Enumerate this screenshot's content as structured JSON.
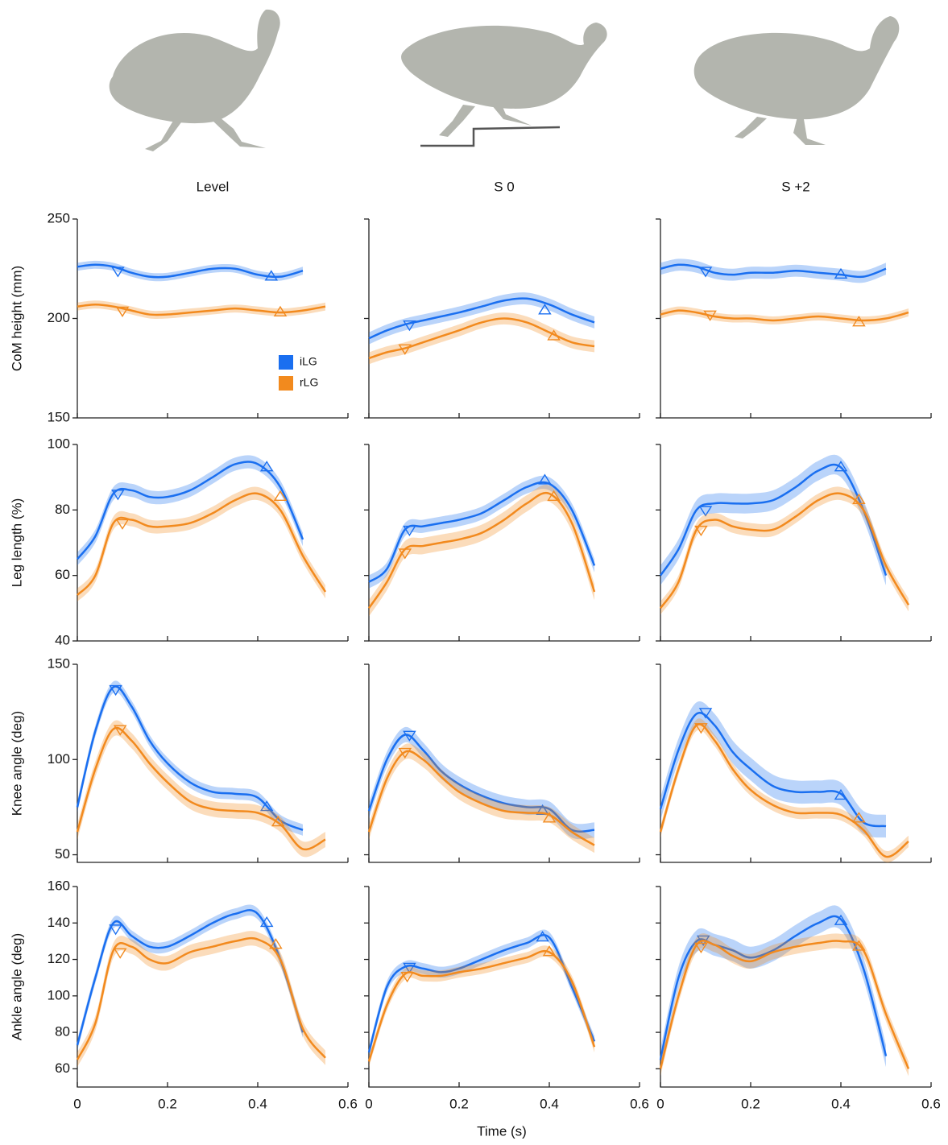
{
  "chart_data": [
    {
      "type": "line",
      "title": "Level",
      "ylabel": "CoM height (mm)",
      "legend": true,
      "xtick_labels": false,
      "ytick_labels": true,
      "xlim": [
        0,
        0.6
      ],
      "xticks": [
        0,
        0.2,
        0.4,
        0.6
      ],
      "ylim": [
        150,
        250
      ],
      "yticks": [
        150,
        200,
        250
      ],
      "x": [
        0,
        0.04,
        0.08,
        0.12,
        0.16,
        0.2,
        0.25,
        0.3,
        0.35,
        0.4,
        0.45,
        0.5,
        0.55
      ],
      "series": [
        {
          "name": "iLG",
          "color": "#1a6ff0",
          "values": [
            226,
            227,
            226,
            223,
            221,
            221,
            223,
            225,
            225,
            222,
            221,
            224,
            null
          ],
          "error": 2,
          "touchdown": [
            0.09,
            224
          ],
          "liftoff": [
            0.43,
            221
          ]
        },
        {
          "name": "rLG",
          "color": "#f28a1e",
          "values": [
            206,
            207,
            206,
            204,
            202,
            202,
            203,
            204,
            205,
            204,
            203,
            204,
            206
          ],
          "error": 2,
          "touchdown": [
            0.1,
            204
          ],
          "liftoff": [
            0.45,
            203
          ]
        }
      ]
    },
    {
      "type": "line",
      "title": "S 0",
      "xtick_labels": false,
      "ytick_labels": false,
      "xlim": [
        0,
        0.6
      ],
      "xticks": [
        0,
        0.2,
        0.4,
        0.6
      ],
      "ylim": [
        150,
        250
      ],
      "yticks": [
        150,
        200,
        250
      ],
      "x": [
        0,
        0.04,
        0.08,
        0.12,
        0.16,
        0.2,
        0.25,
        0.3,
        0.35,
        0.4,
        0.45,
        0.5,
        0.55
      ],
      "series": [
        {
          "color": "#1a6ff0",
          "values": [
            190,
            194,
            197,
            199,
            201,
            203,
            206,
            209,
            210,
            207,
            202,
            198,
            null
          ],
          "error": 3,
          "touchdown": [
            0.09,
            197
          ],
          "liftoff": [
            0.39,
            204
          ]
        },
        {
          "color": "#f28a1e",
          "values": [
            180,
            183,
            185,
            188,
            191,
            194,
            198,
            200,
            198,
            193,
            188,
            186,
            null
          ],
          "error": 3,
          "touchdown": [
            0.08,
            185
          ],
          "liftoff": [
            0.41,
            191
          ]
        }
      ]
    },
    {
      "type": "line",
      "title": "S +2",
      "xtick_labels": false,
      "ytick_labels": false,
      "xlim": [
        0,
        0.6
      ],
      "xticks": [
        0,
        0.2,
        0.4,
        0.6
      ],
      "ylim": [
        150,
        250
      ],
      "yticks": [
        150,
        200,
        250
      ],
      "x": [
        0,
        0.04,
        0.08,
        0.12,
        0.16,
        0.2,
        0.25,
        0.3,
        0.35,
        0.4,
        0.45,
        0.5,
        0.55
      ],
      "series": [
        {
          "color": "#1a6ff0",
          "values": [
            225,
            227,
            226,
            223,
            222,
            223,
            223,
            224,
            223,
            222,
            221,
            225,
            null
          ],
          "error": 3,
          "touchdown": [
            0.1,
            224
          ],
          "liftoff": [
            0.4,
            222
          ]
        },
        {
          "color": "#f28a1e",
          "values": [
            202,
            204,
            203,
            201,
            200,
            200,
            199,
            200,
            201,
            200,
            199,
            200,
            203
          ],
          "error": 2,
          "touchdown": [
            0.11,
            202
          ],
          "liftoff": [
            0.44,
            198
          ]
        }
      ]
    },
    {
      "type": "line",
      "ylabel": "Leg length (%)",
      "xtick_labels": false,
      "ytick_labels": true,
      "xlim": [
        0,
        0.6
      ],
      "xticks": [
        0,
        0.2,
        0.4,
        0.6
      ],
      "ylim": [
        40,
        100
      ],
      "yticks": [
        40,
        60,
        80,
        100
      ],
      "x": [
        0,
        0.04,
        0.08,
        0.12,
        0.16,
        0.2,
        0.25,
        0.3,
        0.35,
        0.4,
        0.45,
        0.5,
        0.55
      ],
      "series": [
        {
          "color": "#1a6ff0",
          "values": [
            65,
            72,
            85,
            86,
            84,
            84,
            86,
            90,
            94,
            94,
            87,
            71,
            null
          ],
          "error": 2,
          "touchdown": [
            0.09,
            85
          ],
          "liftoff": [
            0.42,
            93
          ]
        },
        {
          "color": "#f28a1e",
          "values": [
            54,
            60,
            76,
            77,
            75,
            75,
            76,
            79,
            83,
            85,
            80,
            66,
            55
          ],
          "error": 2,
          "touchdown": [
            0.1,
            76
          ],
          "liftoff": [
            0.45,
            84
          ]
        }
      ]
    },
    {
      "type": "line",
      "xtick_labels": false,
      "ytick_labels": false,
      "xlim": [
        0,
        0.6
      ],
      "xticks": [
        0,
        0.2,
        0.4,
        0.6
      ],
      "ylim": [
        40,
        100
      ],
      "yticks": [
        40,
        60,
        80,
        100
      ],
      "x": [
        0,
        0.04,
        0.08,
        0.12,
        0.16,
        0.2,
        0.25,
        0.3,
        0.35,
        0.4,
        0.45,
        0.5,
        0.55
      ],
      "series": [
        {
          "color": "#1a6ff0",
          "values": [
            58,
            62,
            74,
            75,
            76,
            77,
            79,
            83,
            87,
            88,
            80,
            63,
            null
          ],
          "error": 2,
          "touchdown": [
            0.09,
            74
          ],
          "liftoff": [
            0.39,
            89
          ]
        },
        {
          "color": "#f28a1e",
          "values": [
            50,
            58,
            68,
            69,
            70,
            71,
            73,
            77,
            82,
            85,
            76,
            55,
            null
          ],
          "error": 2.5,
          "touchdown": [
            0.08,
            67
          ],
          "liftoff": [
            0.41,
            84
          ]
        }
      ]
    },
    {
      "type": "line",
      "xtick_labels": false,
      "ytick_labels": false,
      "xlim": [
        0,
        0.6
      ],
      "xticks": [
        0,
        0.2,
        0.4,
        0.6
      ],
      "ylim": [
        40,
        100
      ],
      "yticks": [
        40,
        60,
        80,
        100
      ],
      "x": [
        0,
        0.04,
        0.08,
        0.12,
        0.16,
        0.2,
        0.25,
        0.3,
        0.35,
        0.4,
        0.45,
        0.5,
        0.55
      ],
      "series": [
        {
          "color": "#1a6ff0",
          "values": [
            60,
            68,
            80,
            82,
            82,
            82,
            83,
            87,
            92,
            93,
            80,
            60,
            null
          ],
          "error": 3,
          "touchdown": [
            0.1,
            80
          ],
          "liftoff": [
            0.4,
            93
          ]
        },
        {
          "color": "#f28a1e",
          "values": [
            50,
            58,
            74,
            77,
            75,
            74,
            74,
            78,
            83,
            85,
            80,
            63,
            51
          ],
          "error": 2,
          "touchdown": [
            0.09,
            74
          ],
          "liftoff": [
            0.44,
            83
          ]
        }
      ]
    },
    {
      "type": "line",
      "ylabel": "Knee angle (deg)",
      "xtick_labels": false,
      "ytick_labels": true,
      "xlim": [
        0,
        0.6
      ],
      "xticks": [
        0,
        0.2,
        0.4,
        0.6
      ],
      "ylim": [
        46,
        150
      ],
      "yticks": [
        50,
        100,
        150
      ],
      "x": [
        0,
        0.04,
        0.08,
        0.12,
        0.16,
        0.2,
        0.25,
        0.3,
        0.35,
        0.4,
        0.45,
        0.5,
        0.55
      ],
      "series": [
        {
          "color": "#1a6ff0",
          "values": [
            75,
            115,
            138,
            128,
            110,
            98,
            88,
            83,
            82,
            80,
            68,
            63,
            null
          ],
          "error": 3,
          "touchdown": [
            0.085,
            137
          ],
          "liftoff": [
            0.42,
            75
          ]
        },
        {
          "color": "#f28a1e",
          "values": [
            62,
            95,
            116,
            110,
            98,
            88,
            78,
            74,
            73,
            72,
            66,
            53,
            58
          ],
          "error": 4,
          "touchdown": [
            0.095,
            116
          ],
          "liftoff": [
            0.445,
            67
          ]
        }
      ]
    },
    {
      "type": "line",
      "xtick_labels": false,
      "ytick_labels": false,
      "xlim": [
        0,
        0.6
      ],
      "xticks": [
        0,
        0.2,
        0.4,
        0.6
      ],
      "ylim": [
        46,
        150
      ],
      "yticks": [
        50,
        100,
        150
      ],
      "x": [
        0,
        0.04,
        0.08,
        0.12,
        0.16,
        0.2,
        0.25,
        0.3,
        0.35,
        0.4,
        0.45,
        0.5,
        0.55
      ],
      "series": [
        {
          "color": "#1a6ff0",
          "values": [
            73,
            100,
            113,
            105,
            94,
            87,
            81,
            77,
            75,
            74,
            63,
            63,
            null
          ],
          "error": 4,
          "touchdown": [
            0.09,
            113
          ],
          "liftoff": [
            0.385,
            73
          ]
        },
        {
          "color": "#f28a1e",
          "values": [
            62,
            90,
            104,
            100,
            91,
            83,
            77,
            73,
            72,
            71,
            62,
            55,
            null
          ],
          "error": 4,
          "touchdown": [
            0.08,
            104
          ],
          "liftoff": [
            0.4,
            69
          ]
        }
      ]
    },
    {
      "type": "line",
      "xtick_labels": false,
      "ytick_labels": false,
      "xlim": [
        0,
        0.6
      ],
      "xticks": [
        0,
        0.2,
        0.4,
        0.6
      ],
      "ylim": [
        46,
        150
      ],
      "yticks": [
        50,
        100,
        150
      ],
      "x": [
        0,
        0.04,
        0.08,
        0.12,
        0.16,
        0.2,
        0.25,
        0.3,
        0.35,
        0.4,
        0.45,
        0.5,
        0.55
      ],
      "series": [
        {
          "color": "#1a6ff0",
          "values": [
            74,
            105,
            124,
            118,
            104,
            95,
            86,
            83,
            83,
            82,
            67,
            65,
            null
          ],
          "error": 6,
          "touchdown": [
            0.1,
            125
          ],
          "liftoff": [
            0.4,
            81
          ]
        },
        {
          "color": "#f28a1e",
          "values": [
            62,
            95,
            118,
            110,
            95,
            84,
            76,
            72,
            72,
            71,
            63,
            49,
            57
          ],
          "error": 3,
          "touchdown": [
            0.09,
            117
          ],
          "liftoff": [
            0.44,
            69
          ]
        }
      ]
    },
    {
      "type": "line",
      "ylabel": "Ankle angle (deg)",
      "xtick_labels": true,
      "ytick_labels": true,
      "xlim": [
        0,
        0.6
      ],
      "xticks": [
        0,
        0.2,
        0.4,
        0.6
      ],
      "ylim": [
        50,
        160
      ],
      "yticks": [
        60,
        80,
        100,
        120,
        140,
        160
      ],
      "x": [
        0,
        0.04,
        0.08,
        0.12,
        0.16,
        0.2,
        0.25,
        0.3,
        0.35,
        0.4,
        0.45,
        0.5,
        0.55
      ],
      "series": [
        {
          "color": "#1a6ff0",
          "values": [
            73,
            110,
            140,
            133,
            127,
            127,
            133,
            140,
            145,
            145,
            120,
            80,
            null
          ],
          "error": 3,
          "touchdown": [
            0.085,
            137
          ],
          "liftoff": [
            0.42,
            140
          ]
        },
        {
          "color": "#f28a1e",
          "values": [
            65,
            85,
            125,
            127,
            120,
            118,
            124,
            127,
            130,
            131,
            120,
            82,
            66
          ],
          "error": 4,
          "touchdown": [
            0.095,
            124
          ],
          "liftoff": [
            0.44,
            128
          ]
        }
      ]
    },
    {
      "type": "line",
      "xlabel": "Time (s)",
      "xtick_labels": true,
      "ytick_labels": false,
      "xlim": [
        0,
        0.6
      ],
      "xticks": [
        0,
        0.2,
        0.4,
        0.6
      ],
      "ylim": [
        50,
        160
      ],
      "yticks": [
        60,
        80,
        100,
        120,
        140,
        160
      ],
      "x": [
        0,
        0.04,
        0.08,
        0.12,
        0.16,
        0.2,
        0.25,
        0.3,
        0.35,
        0.4,
        0.45,
        0.5,
        0.55
      ],
      "series": [
        {
          "color": "#1a6ff0",
          "values": [
            69,
            105,
            116,
            115,
            113,
            115,
            120,
            125,
            129,
            132,
            105,
            75,
            null
          ],
          "error": 3,
          "touchdown": [
            0.09,
            116
          ],
          "liftoff": [
            0.385,
            132
          ]
        },
        {
          "color": "#f28a1e",
          "values": [
            64,
            95,
            112,
            111,
            111,
            113,
            115,
            118,
            121,
            124,
            108,
            72,
            null
          ],
          "error": 3,
          "touchdown": [
            0.085,
            111
          ],
          "liftoff": [
            0.4,
            124
          ]
        }
      ]
    },
    {
      "type": "line",
      "xtick_labels": true,
      "ytick_labels": false,
      "xlim": [
        0,
        0.6
      ],
      "xticks": [
        0,
        0.2,
        0.4,
        0.6
      ],
      "ylim": [
        50,
        160
      ],
      "yticks": [
        60,
        80,
        100,
        120,
        140,
        160
      ],
      "x": [
        0,
        0.04,
        0.08,
        0.12,
        0.16,
        0.2,
        0.25,
        0.3,
        0.35,
        0.4,
        0.45,
        0.5,
        0.55
      ],
      "series": [
        {
          "color": "#1a6ff0",
          "values": [
            65,
            110,
            130,
            128,
            125,
            121,
            125,
            133,
            140,
            142,
            115,
            67,
            null
          ],
          "error": 6,
          "touchdown": [
            0.095,
            131
          ],
          "liftoff": [
            0.4,
            141
          ]
        },
        {
          "color": "#f28a1e",
          "values": [
            60,
            100,
            128,
            128,
            122,
            119,
            124,
            127,
            129,
            130,
            125,
            90,
            60
          ],
          "error": 4,
          "touchdown": [
            0.09,
            127
          ],
          "liftoff": [
            0.44,
            127
          ]
        }
      ]
    }
  ]
}
